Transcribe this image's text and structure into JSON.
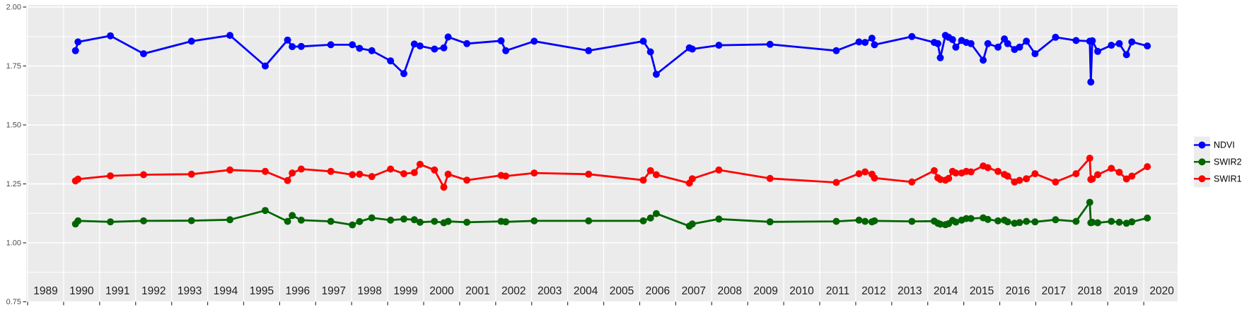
{
  "chart_data": {
    "type": "line",
    "title": "",
    "xlabel": "",
    "ylabel": "",
    "panel_background": "#EBEBEB",
    "grid_color": "#FFFFFF",
    "tick_color": "#333333",
    "x_axis": {
      "range": [
        1988.96,
        2020.94
      ],
      "tick_labels": [
        "1989",
        "1990",
        "1991",
        "1992",
        "1993",
        "1994",
        "1995",
        "1996",
        "1997",
        "1998",
        "1999",
        "2000",
        "2001",
        "2002",
        "2003",
        "2004",
        "2005",
        "2006",
        "2007",
        "2008",
        "2009",
        "2010",
        "2011",
        "2012",
        "2013",
        "2014",
        "2015",
        "2016",
        "2017",
        "2018",
        "2019",
        "2020"
      ],
      "tick_values": [
        1989,
        1990,
        1991,
        1992,
        1993,
        1994,
        1995,
        1996,
        1997,
        1998,
        1999,
        2000,
        2001,
        2002,
        2003,
        2004,
        2005,
        2006,
        2007,
        2008,
        2009,
        2010,
        2011,
        2012,
        2013,
        2014,
        2015,
        2016,
        2017,
        2018,
        2019,
        2020
      ],
      "label_color": "#1f1f1f"
    },
    "y_axis": {
      "range": [
        0.75,
        2.0
      ],
      "tick_labels": [
        "0.75",
        "1.00",
        "1.25",
        "1.50",
        "1.75",
        "2.00"
      ],
      "tick_values": [
        0.75,
        1.0,
        1.25,
        1.5,
        1.75,
        2.0
      ],
      "minor_tick_values": [
        0.875,
        1.125,
        1.375,
        1.625,
        1.875
      ],
      "label_color": "#4d4d4d"
    },
    "x": [
      1990.33,
      1990.4,
      1991.3,
      1992.22,
      1993.55,
      1994.62,
      1995.6,
      1996.22,
      1996.35,
      1996.6,
      1997.42,
      1998.02,
      1998.22,
      1998.56,
      1999.08,
      1999.45,
      1999.74,
      1999.9,
      2000.3,
      2000.56,
      2000.68,
      2001.2,
      2002.15,
      2002.28,
      2003.07,
      2004.58,
      2006.1,
      2006.3,
      2006.46,
      2007.38,
      2007.46,
      2008.2,
      2009.62,
      2011.46,
      2012.09,
      2012.26,
      2012.45,
      2012.52,
      2013.56,
      2014.18,
      2014.28,
      2014.35,
      2014.49,
      2014.58,
      2014.69,
      2014.78,
      2014.94,
      2015.07,
      2015.2,
      2015.54,
      2015.67,
      2015.95,
      2016.13,
      2016.22,
      2016.41,
      2016.55,
      2016.74,
      2016.98,
      2017.55,
      2018.12,
      2018.5,
      2018.53,
      2018.57,
      2018.72,
      2019.1,
      2019.32,
      2019.52,
      2019.67,
      2020.1
    ],
    "series": [
      {
        "name": "NDVI",
        "color": "#0000FF",
        "values": [
          1.815,
          1.852,
          1.878,
          1.802,
          1.855,
          1.88,
          1.75,
          1.86,
          1.832,
          1.833,
          1.84,
          1.84,
          1.825,
          1.815,
          1.772,
          1.718,
          1.843,
          1.835,
          1.822,
          1.827,
          1.873,
          1.845,
          1.857,
          1.815,
          1.855,
          1.815,
          1.855,
          1.81,
          1.715,
          1.827,
          1.822,
          1.838,
          1.842,
          1.815,
          1.852,
          1.85,
          1.868,
          1.84,
          1.875,
          1.85,
          1.845,
          1.785,
          1.88,
          1.872,
          1.862,
          1.83,
          1.858,
          1.85,
          1.845,
          1.775,
          1.845,
          1.83,
          1.865,
          1.845,
          1.82,
          1.83,
          1.855,
          1.802,
          1.872,
          1.858,
          1.855,
          1.682,
          1.857,
          1.812,
          1.838,
          1.845,
          1.798,
          1.852,
          1.835
        ]
      },
      {
        "name": "SWIR2",
        "color": "#006400",
        "values": [
          1.08,
          1.093,
          1.089,
          1.093,
          1.094,
          1.098,
          1.137,
          1.091,
          1.116,
          1.096,
          1.091,
          1.076,
          1.09,
          1.106,
          1.096,
          1.101,
          1.098,
          1.087,
          1.091,
          1.085,
          1.091,
          1.087,
          1.091,
          1.089,
          1.093,
          1.093,
          1.093,
          1.105,
          1.124,
          1.071,
          1.08,
          1.101,
          1.089,
          1.091,
          1.096,
          1.091,
          1.089,
          1.093,
          1.091,
          1.092,
          1.083,
          1.079,
          1.077,
          1.081,
          1.095,
          1.088,
          1.096,
          1.103,
          1.103,
          1.106,
          1.099,
          1.093,
          1.096,
          1.089,
          1.083,
          1.086,
          1.091,
          1.089,
          1.098,
          1.091,
          1.172,
          1.085,
          1.087,
          1.085,
          1.091,
          1.087,
          1.083,
          1.089,
          1.105
        ]
      },
      {
        "name": "SWIR1",
        "color": "#FF0000",
        "values": [
          1.263,
          1.27,
          1.284,
          1.289,
          1.291,
          1.309,
          1.303,
          1.264,
          1.296,
          1.313,
          1.303,
          1.289,
          1.291,
          1.281,
          1.313,
          1.293,
          1.298,
          1.333,
          1.309,
          1.236,
          1.291,
          1.266,
          1.286,
          1.283,
          1.296,
          1.291,
          1.266,
          1.306,
          1.289,
          1.253,
          1.272,
          1.309,
          1.273,
          1.256,
          1.293,
          1.301,
          1.291,
          1.275,
          1.258,
          1.306,
          1.276,
          1.269,
          1.266,
          1.273,
          1.303,
          1.296,
          1.296,
          1.303,
          1.301,
          1.326,
          1.319,
          1.303,
          1.29,
          1.283,
          1.258,
          1.265,
          1.272,
          1.293,
          1.258,
          1.293,
          1.359,
          1.269,
          1.271,
          1.289,
          1.316,
          1.299,
          1.271,
          1.283,
          1.323
        ]
      }
    ],
    "legend": {
      "position": "right",
      "key_fill": "#ECECEC",
      "entries": [
        {
          "label": "NDVI",
          "color": "#0000FF"
        },
        {
          "label": "SWIR2",
          "color": "#006400"
        },
        {
          "label": "SWIR1",
          "color": "#FF0000"
        }
      ]
    }
  }
}
